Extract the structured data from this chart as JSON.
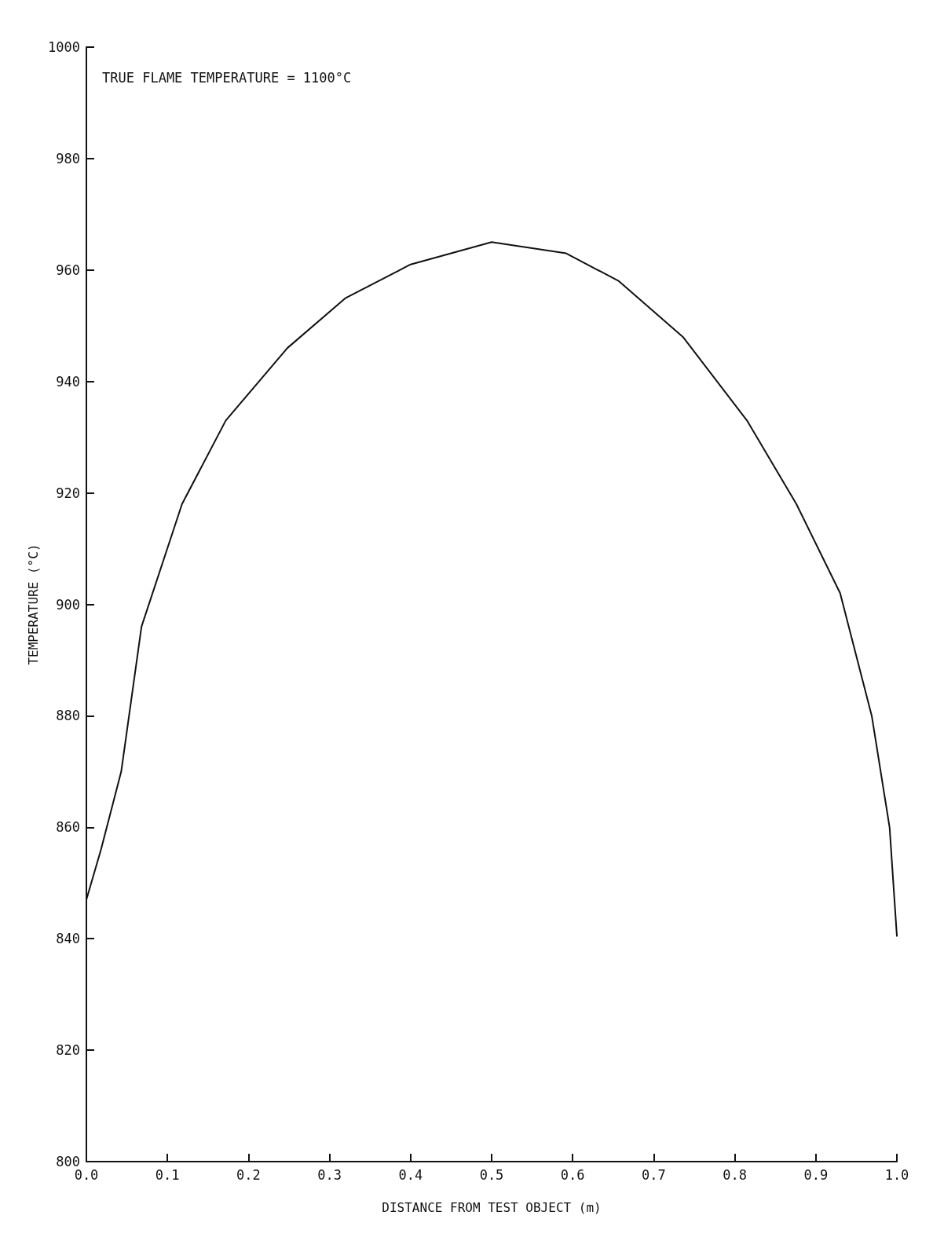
{
  "chart_data": {
    "type": "line",
    "xlabel": "DISTANCE FROM TEST OBJECT (m)",
    "ylabel": "TEMPERATURE (°C)",
    "annotations": [
      "TRUE FLAME TEMPERATURE = 1100°C"
    ],
    "x": [
      0,
      0.018,
      0.043,
      0.068,
      0.118,
      0.172,
      0.248,
      0.32,
      0.4,
      0.5,
      0.592,
      0.657,
      0.736,
      0.815,
      0.876,
      0.93,
      0.969,
      0.991,
      1.0
    ],
    "series": [
      {
        "color": "#111111",
        "values": [
          847,
          856,
          870,
          896,
          918,
          933,
          946,
          955,
          961,
          965,
          963,
          958,
          948,
          933,
          918,
          902,
          880,
          860,
          840.5
        ]
      }
    ],
    "xlim": [
      0,
      1
    ],
    "xticks": [
      {
        "value": 0,
        "label": "0.0"
      },
      0.1,
      0.2,
      0.3,
      0.4,
      0.5,
      0.6,
      0.7,
      0.8,
      0.9,
      {
        "value": 1,
        "label": "1.0"
      }
    ],
    "ylim": [
      800,
      1000
    ],
    "yticks": [
      800,
      820,
      840,
      860,
      880,
      900,
      920,
      940,
      960,
      980,
      1000
    ],
    "grid": false,
    "marker": "none",
    "line_style": "solid"
  }
}
